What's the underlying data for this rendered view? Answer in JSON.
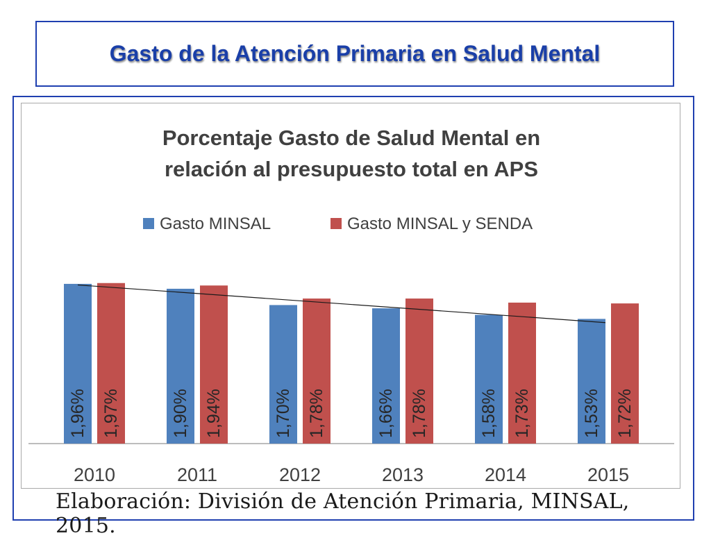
{
  "header": {
    "title": "Gasto de la Atención Primaria en Salud Mental"
  },
  "chart_data": {
    "type": "bar",
    "title_lines": [
      "Porcentaje Gasto de Salud Mental  en",
      "relación al presupuesto total en APS"
    ],
    "categories": [
      "2010",
      "2011",
      "2012",
      "2013",
      "2014",
      "2015"
    ],
    "series": [
      {
        "name": "Gasto MINSAL",
        "color": "#4f81bd",
        "values": [
          1.96,
          1.9,
          1.7,
          1.66,
          1.58,
          1.53
        ],
        "labels": [
          "1,96%",
          "1,90%",
          "1,70%",
          "1,66%",
          "1,58%",
          "1,53%"
        ]
      },
      {
        "name": "Gasto MINSAL y SENDA",
        "color": "#c0504d",
        "values": [
          1.97,
          1.94,
          1.78,
          1.78,
          1.73,
          1.72
        ],
        "labels": [
          "1,97%",
          "1,94%",
          "1,78%",
          "1,78%",
          "1,73%",
          "1,72%"
        ]
      }
    ],
    "trendline": {
      "series": "Gasto MINSAL",
      "color": "#1a1a1a"
    },
    "legend": "top",
    "grid": false,
    "ylim": [
      0,
      2.3
    ]
  },
  "footer": {
    "source": "Elaboración: División de Atención Primaria, MINSAL, 2015."
  }
}
